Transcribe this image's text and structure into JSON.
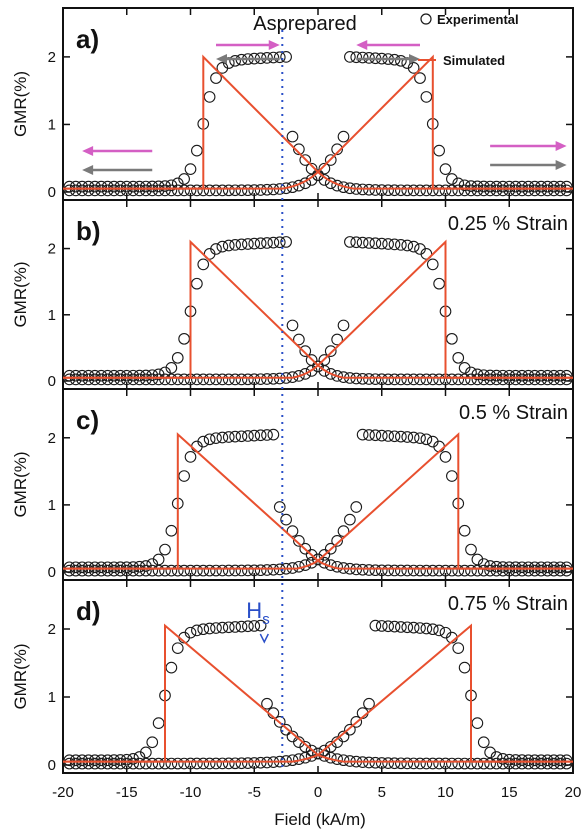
{
  "colors": {
    "experimental": "#1a1a1a",
    "simulated": "#e8502f",
    "arrow_magenta": "#d45fc4",
    "arrow_gray": "#7a7a7a",
    "hs_line": "#2a4fc8"
  },
  "chart_data": {
    "type": "scatter",
    "xlabel": "Field (kA/m)",
    "ylabel": "GMR(%)",
    "xlim": [
      -20,
      20
    ],
    "ylim": [
      -0.1,
      2.5
    ],
    "xticks": [
      "-20",
      "-15",
      "-10",
      "-5",
      "0",
      "5",
      "10",
      "15",
      "20"
    ],
    "yticks": [
      "0",
      "1",
      "2"
    ],
    "hs_field": -2.8,
    "legend": {
      "experimental": "Experimental",
      "simulated": "Simulated",
      "position": "top-right"
    },
    "panels": [
      {
        "id": "a",
        "letter": "a)",
        "title": "Asprepared",
        "peak": 2.0,
        "hc": 9.0,
        "hs": 2.5,
        "w_dec": 2.2,
        "w_inc": 2.6,
        "base": 0.08,
        "arrows": true
      },
      {
        "id": "b",
        "letter": "b)",
        "title": "0.25 % Strain",
        "peak": 2.1,
        "hc": 10.0,
        "hs": 2.5,
        "w_dec": 2.0,
        "w_inc": 2.2,
        "base": 0.08,
        "arrows": false
      },
      {
        "id": "c",
        "letter": "c)",
        "title": "0.5 % Strain",
        "peak": 2.05,
        "hc": 11.0,
        "hs": 3.2,
        "w_dec": 2.4,
        "w_inc": 2.4,
        "base": 0.07,
        "arrows": false
      },
      {
        "id": "d",
        "letter": "d)",
        "title": "0.75 % Strain",
        "peak": 2.05,
        "hc": 12.0,
        "hs": 4.5,
        "w_dec": 3.2,
        "w_inc": 3.2,
        "base": 0.07,
        "arrows": false,
        "hs_label": "Hs"
      }
    ]
  }
}
